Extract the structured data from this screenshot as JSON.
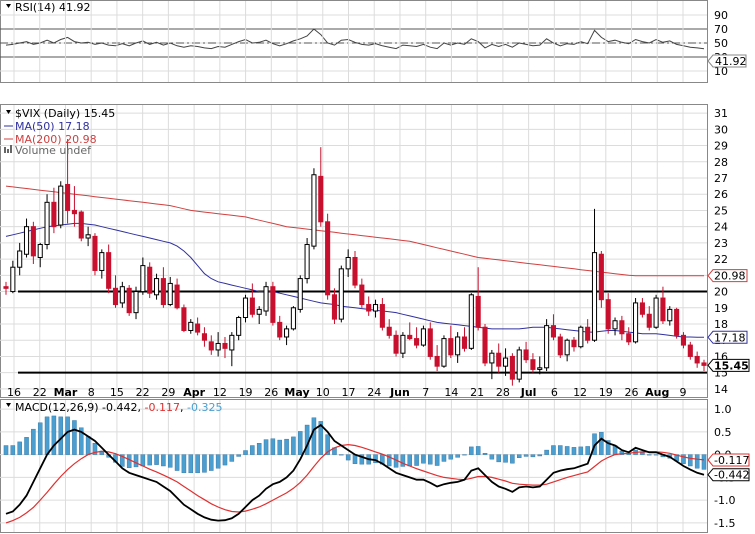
{
  "rsi": {
    "label": "RSI(14) 41.92",
    "value_tag": "41.92",
    "ticks": [
      90,
      70,
      50,
      30,
      10
    ],
    "levels": [
      70,
      50,
      30
    ]
  },
  "price": {
    "title": "$VIX (Daily) 15.45",
    "ma50_label": "MA(50) 17.18",
    "ma200_label": "MA(200) 20.98",
    "volume_label": "Volume undef",
    "last_tag": "15.45",
    "ma50_tag": "17.18",
    "ma200_tag": "20.98",
    "ticks": [
      "31",
      "30",
      "29",
      "28",
      "27",
      "26",
      "25",
      "24",
      "23",
      "22",
      "21",
      "20",
      "19",
      "18",
      "17",
      "16",
      "15",
      "14"
    ],
    "support_level": 15,
    "resistance_level": 20
  },
  "dates": [
    {
      "label": "16",
      "bold": false
    },
    {
      "label": "22",
      "bold": false
    },
    {
      "label": "Mar",
      "bold": true
    },
    {
      "label": "8",
      "bold": false
    },
    {
      "label": "15",
      "bold": false
    },
    {
      "label": "22",
      "bold": false
    },
    {
      "label": "29",
      "bold": false
    },
    {
      "label": "Apr",
      "bold": true
    },
    {
      "label": "12",
      "bold": false
    },
    {
      "label": "19",
      "bold": false
    },
    {
      "label": "26",
      "bold": false
    },
    {
      "label": "May",
      "bold": true
    },
    {
      "label": "10",
      "bold": false
    },
    {
      "label": "17",
      "bold": false
    },
    {
      "label": "24",
      "bold": false
    },
    {
      "label": "Jun",
      "bold": true
    },
    {
      "label": "7",
      "bold": false
    },
    {
      "label": "14",
      "bold": false
    },
    {
      "label": "21",
      "bold": false
    },
    {
      "label": "28",
      "bold": false
    },
    {
      "label": "Jul",
      "bold": true
    },
    {
      "label": "6",
      "bold": false
    },
    {
      "label": "12",
      "bold": false
    },
    {
      "label": "19",
      "bold": false
    },
    {
      "label": "26",
      "bold": false
    },
    {
      "label": "Aug",
      "bold": true
    },
    {
      "label": "9",
      "bold": false
    }
  ],
  "macd": {
    "label_prefix": "MACD(12,26,9)",
    "value1": "-0.442",
    "value2": "-0.117",
    "value3": "-0.325",
    "tag_signal": "-0.117",
    "tag_macd": "-0.442",
    "ticks": [
      "1.0",
      "0.5",
      "0.0",
      "-0.5",
      "-1.0",
      "-1.5"
    ]
  },
  "colors": {
    "up": "#000000",
    "down": "#c8102e",
    "ma50": "#3030a0",
    "ma200": "#d04040",
    "histogram": "#4a9fd0",
    "signal": "#e03030",
    "macd": "#000000"
  },
  "chart_data": {
    "type": "candlestick",
    "ohlc_series": [
      [
        20.3,
        20.6,
        19.8,
        20.2
      ],
      [
        20.0,
        21.9,
        19.9,
        21.5
      ],
      [
        21.5,
        23.0,
        21.0,
        22.5
      ],
      [
        22.3,
        24.5,
        22.1,
        24.0
      ],
      [
        24.0,
        24.3,
        21.7,
        22.2
      ],
      [
        22.1,
        23.0,
        21.5,
        22.9
      ],
      [
        22.9,
        26.0,
        22.6,
        25.5
      ],
      [
        25.5,
        26.4,
        23.6,
        24.0
      ],
      [
        24.1,
        26.8,
        23.9,
        26.5
      ],
      [
        26.6,
        29.4,
        24.2,
        25.0
      ],
      [
        25.0,
        26.5,
        24.0,
        24.8
      ],
      [
        24.9,
        25.0,
        23.1,
        23.3
      ],
      [
        23.3,
        24.0,
        22.8,
        23.5
      ],
      [
        23.4,
        23.6,
        21.0,
        21.3
      ],
      [
        21.3,
        22.6,
        20.8,
        22.4
      ],
      [
        22.4,
        22.9,
        19.9,
        20.2
      ],
      [
        20.2,
        21.0,
        19.0,
        19.2
      ],
      [
        19.3,
        20.6,
        19.0,
        20.3
      ],
      [
        20.2,
        20.4,
        18.5,
        18.7
      ],
      [
        18.7,
        20.3,
        18.3,
        20.0
      ],
      [
        20.0,
        22.1,
        19.8,
        21.6
      ],
      [
        21.5,
        21.8,
        19.6,
        19.9
      ],
      [
        19.8,
        21.1,
        19.5,
        20.8
      ],
      [
        20.8,
        21.5,
        19.0,
        19.2
      ],
      [
        19.2,
        20.9,
        19.1,
        20.5
      ],
      [
        20.4,
        20.8,
        18.9,
        19.0
      ],
      [
        19.0,
        19.2,
        17.5,
        17.6
      ],
      [
        17.6,
        18.3,
        17.4,
        18.1
      ],
      [
        18.0,
        18.4,
        17.3,
        17.5
      ],
      [
        17.4,
        17.8,
        16.6,
        17.0
      ],
      [
        16.9,
        17.3,
        16.1,
        16.4
      ],
      [
        16.4,
        17.5,
        16.0,
        16.8
      ],
      [
        16.8,
        17.2,
        15.9,
        16.5
      ],
      [
        16.4,
        17.5,
        15.4,
        17.3
      ],
      [
        17.3,
        18.5,
        17.0,
        18.4
      ],
      [
        18.4,
        19.8,
        18.1,
        19.6
      ],
      [
        19.6,
        20.5,
        18.4,
        18.6
      ],
      [
        18.6,
        19.1,
        18.0,
        18.9
      ],
      [
        18.8,
        20.6,
        18.5,
        20.3
      ],
      [
        20.3,
        20.6,
        17.9,
        18.1
      ],
      [
        18.1,
        18.5,
        17.0,
        17.2
      ],
      [
        17.2,
        17.9,
        16.7,
        17.7
      ],
      [
        17.7,
        19.1,
        17.6,
        19.0
      ],
      [
        18.9,
        21.0,
        18.7,
        20.8
      ],
      [
        20.8,
        23.3,
        20.5,
        22.9
      ],
      [
        22.8,
        27.6,
        22.6,
        27.2
      ],
      [
        27.1,
        28.9,
        24.0,
        24.3
      ],
      [
        24.3,
        24.8,
        19.5,
        19.8
      ],
      [
        19.8,
        20.2,
        18.0,
        18.3
      ],
      [
        18.3,
        21.6,
        18.1,
        21.4
      ],
      [
        21.4,
        22.6,
        20.9,
        22.1
      ],
      [
        22.1,
        22.5,
        20.2,
        20.4
      ],
      [
        20.4,
        20.8,
        19.0,
        19.2
      ],
      [
        19.2,
        19.7,
        18.5,
        18.8
      ],
      [
        18.8,
        19.5,
        18.4,
        19.2
      ],
      [
        19.2,
        19.6,
        17.6,
        17.8
      ],
      [
        17.8,
        18.3,
        17.1,
        17.3
      ],
      [
        17.3,
        17.6,
        16.0,
        16.2
      ],
      [
        16.2,
        17.5,
        15.9,
        17.3
      ],
      [
        17.3,
        18.1,
        17.0,
        17.1
      ],
      [
        17.1,
        17.8,
        16.5,
        16.7
      ],
      [
        16.7,
        17.9,
        16.6,
        17.7
      ],
      [
        17.7,
        18.1,
        15.8,
        16.0
      ],
      [
        16.0,
        16.7,
        15.1,
        15.4
      ],
      [
        15.4,
        17.3,
        15.3,
        17.1
      ],
      [
        17.1,
        17.9,
        15.9,
        16.1
      ],
      [
        16.1,
        17.5,
        15.6,
        17.2
      ],
      [
        17.2,
        17.8,
        16.3,
        16.5
      ],
      [
        16.5,
        19.9,
        16.4,
        19.8
      ],
      [
        19.7,
        21.5,
        17.6,
        17.8
      ],
      [
        17.8,
        18.0,
        15.4,
        15.6
      ],
      [
        15.6,
        16.4,
        14.6,
        16.2
      ],
      [
        16.2,
        16.8,
        15.0,
        15.4
      ],
      [
        15.4,
        16.5,
        14.8,
        15.9
      ],
      [
        16.0,
        16.2,
        14.2,
        14.6
      ],
      [
        14.6,
        16.6,
        14.4,
        16.4
      ],
      [
        16.4,
        16.9,
        15.6,
        15.8
      ],
      [
        15.8,
        16.2,
        15.0,
        15.2
      ],
      [
        15.2,
        16.0,
        14.9,
        15.3
      ],
      [
        15.3,
        18.3,
        15.1,
        17.9
      ],
      [
        17.9,
        18.6,
        17.0,
        17.2
      ],
      [
        17.2,
        17.4,
        15.9,
        16.1
      ],
      [
        16.1,
        17.1,
        15.7,
        17.0
      ],
      [
        17.0,
        17.2,
        16.3,
        16.6
      ],
      [
        16.6,
        17.9,
        16.5,
        17.8
      ],
      [
        17.8,
        18.3,
        16.8,
        17.0
      ],
      [
        17.0,
        25.1,
        16.9,
        22.4
      ],
      [
        22.3,
        22.5,
        19.0,
        19.5
      ],
      [
        19.5,
        19.9,
        17.4,
        17.7
      ],
      [
        17.7,
        18.4,
        17.3,
        18.2
      ],
      [
        18.2,
        18.5,
        17.0,
        17.4
      ],
      [
        17.4,
        17.8,
        16.7,
        16.9
      ],
      [
        16.9,
        19.6,
        16.8,
        19.3
      ],
      [
        19.3,
        19.6,
        18.4,
        18.6
      ],
      [
        18.6,
        19.1,
        17.6,
        17.8
      ],
      [
        17.8,
        19.8,
        17.7,
        19.6
      ],
      [
        19.6,
        20.3,
        18.0,
        18.2
      ],
      [
        18.2,
        19.1,
        17.9,
        18.9
      ],
      [
        18.9,
        19.0,
        17.1,
        17.3
      ],
      [
        17.3,
        17.5,
        16.5,
        16.7
      ],
      [
        16.7,
        16.9,
        15.8,
        16.0
      ],
      [
        16.0,
        16.3,
        15.3,
        15.6
      ],
      [
        15.6,
        15.8,
        15.1,
        15.45
      ]
    ],
    "ma50": [
      23.4,
      23.5,
      23.6,
      23.7,
      23.8,
      23.9,
      24.0,
      24.05,
      24.1,
      24.15,
      24.2,
      24.2,
      24.15,
      24.1,
      24.0,
      23.9,
      23.8,
      23.7,
      23.6,
      23.5,
      23.4,
      23.3,
      23.2,
      23.1,
      23.0,
      22.8,
      22.5,
      22.1,
      21.6,
      21.1,
      20.8,
      20.6,
      20.5,
      20.4,
      20.3,
      20.2,
      20.1,
      20.0,
      20.0,
      20.0,
      19.9,
      19.8,
      19.7,
      19.6,
      19.5,
      19.4,
      19.3,
      19.25,
      19.2,
      19.1,
      19.05,
      19.0,
      18.95,
      18.9,
      18.85,
      18.8,
      18.75,
      18.7,
      18.6,
      18.5,
      18.4,
      18.3,
      18.2,
      18.1,
      18.05,
      18.0,
      17.95,
      17.9,
      17.85,
      17.8,
      17.75,
      17.7,
      17.7,
      17.7,
      17.7,
      17.7,
      17.75,
      17.8,
      17.8,
      17.8,
      17.75,
      17.7,
      17.65,
      17.6,
      17.55,
      17.5,
      17.5,
      17.55,
      17.6,
      17.6,
      17.55,
      17.5,
      17.45,
      17.4,
      17.4,
      17.4,
      17.35,
      17.3,
      17.25,
      17.2,
      17.2,
      17.18,
      17.18
    ],
    "ma200": [
      26.5,
      26.45,
      26.4,
      26.35,
      26.3,
      26.25,
      26.2,
      26.15,
      26.1,
      26.05,
      26.0,
      25.95,
      25.9,
      25.85,
      25.8,
      25.75,
      25.7,
      25.65,
      25.6,
      25.55,
      25.5,
      25.45,
      25.4,
      25.35,
      25.3,
      25.2,
      25.1,
      25.0,
      24.95,
      24.9,
      24.85,
      24.8,
      24.75,
      24.7,
      24.65,
      24.6,
      24.5,
      24.4,
      24.3,
      24.2,
      24.1,
      24.0,
      23.95,
      23.9,
      23.85,
      23.8,
      23.75,
      23.7,
      23.65,
      23.6,
      23.55,
      23.5,
      23.45,
      23.4,
      23.35,
      23.3,
      23.25,
      23.2,
      23.15,
      23.1,
      23.0,
      22.9,
      22.8,
      22.7,
      22.6,
      22.5,
      22.4,
      22.3,
      22.2,
      22.1,
      22.05,
      22.0,
      21.95,
      21.9,
      21.85,
      21.8,
      21.75,
      21.7,
      21.65,
      21.6,
      21.55,
      21.5,
      21.45,
      21.4,
      21.35,
      21.3,
      21.25,
      21.2,
      21.15,
      21.1,
      21.05,
      21.0,
      20.98,
      20.98,
      20.98,
      20.98,
      20.98,
      20.98,
      20.98,
      20.98,
      20.98,
      20.98,
      20.98
    ],
    "rsi": [
      47,
      48,
      50,
      52,
      48,
      50,
      54,
      50,
      55,
      58,
      52,
      50,
      51,
      48,
      50,
      47,
      46,
      49,
      46,
      50,
      53,
      48,
      51,
      47,
      50,
      46,
      44,
      46,
      45,
      43,
      42,
      45,
      44,
      48,
      52,
      55,
      50,
      51,
      54,
      49,
      46,
      49,
      53,
      56,
      60,
      70,
      62,
      50,
      47,
      54,
      55,
      51,
      48,
      47,
      49,
      46,
      44,
      42,
      47,
      46,
      45,
      48,
      44,
      42,
      50,
      47,
      50,
      48,
      56,
      52,
      43,
      48,
      45,
      48,
      44,
      50,
      48,
      46,
      47,
      56,
      50,
      46,
      49,
      48,
      52,
      49,
      68,
      58,
      52,
      54,
      51,
      49,
      55,
      52,
      50,
      55,
      51,
      53,
      48,
      46,
      44,
      43,
      41.92
    ],
    "macd": [
      -1.3,
      -1.25,
      -1.1,
      -0.9,
      -0.6,
      -0.3,
      0.0,
      0.2,
      0.35,
      0.5,
      0.55,
      0.5,
      0.4,
      0.3,
      0.15,
      0.0,
      -0.15,
      -0.3,
      -0.4,
      -0.45,
      -0.5,
      -0.55,
      -0.6,
      -0.7,
      -0.8,
      -0.95,
      -1.1,
      -1.2,
      -1.3,
      -1.38,
      -1.43,
      -1.45,
      -1.44,
      -1.4,
      -1.3,
      -1.15,
      -1.0,
      -0.9,
      -0.75,
      -0.65,
      -0.6,
      -0.5,
      -0.35,
      -0.1,
      0.2,
      0.55,
      0.65,
      0.5,
      0.3,
      0.2,
      0.1,
      0.0,
      -0.05,
      -0.1,
      -0.12,
      -0.2,
      -0.3,
      -0.4,
      -0.45,
      -0.5,
      -0.55,
      -0.55,
      -0.62,
      -0.7,
      -0.65,
      -0.62,
      -0.6,
      -0.55,
      -0.35,
      -0.3,
      -0.45,
      -0.6,
      -0.7,
      -0.75,
      -0.82,
      -0.72,
      -0.7,
      -0.72,
      -0.7,
      -0.55,
      -0.4,
      -0.35,
      -0.32,
      -0.3,
      -0.25,
      -0.2,
      0.2,
      0.35,
      0.25,
      0.2,
      0.1,
      0.05,
      0.15,
      0.1,
      0.05,
      0.05,
      0.0,
      -0.05,
      -0.15,
      -0.25,
      -0.33,
      -0.4,
      -0.442
    ],
    "signal": [
      -1.5,
      -1.45,
      -1.38,
      -1.28,
      -1.16,
      -1.0,
      -0.83,
      -0.65,
      -0.48,
      -0.33,
      -0.2,
      -0.09,
      -0.0,
      0.05,
      0.07,
      0.06,
      0.02,
      -0.04,
      -0.11,
      -0.18,
      -0.25,
      -0.32,
      -0.38,
      -0.45,
      -0.52,
      -0.6,
      -0.7,
      -0.8,
      -0.9,
      -0.99,
      -1.08,
      -1.15,
      -1.21,
      -1.25,
      -1.26,
      -1.24,
      -1.2,
      -1.15,
      -1.08,
      -1.0,
      -0.92,
      -0.84,
      -0.74,
      -0.61,
      -0.45,
      -0.26,
      -0.08,
      0.06,
      0.15,
      0.2,
      0.22,
      0.2,
      0.16,
      0.11,
      0.06,
      0.01,
      -0.05,
      -0.12,
      -0.19,
      -0.25,
      -0.31,
      -0.36,
      -0.41,
      -0.46,
      -0.5,
      -0.52,
      -0.54,
      -0.55,
      -0.52,
      -0.48,
      -0.48,
      -0.5,
      -0.54,
      -0.58,
      -0.63,
      -0.65,
      -0.66,
      -0.67,
      -0.67,
      -0.65,
      -0.6,
      -0.55,
      -0.5,
      -0.46,
      -0.42,
      -0.38,
      -0.26,
      -0.14,
      -0.06,
      0.0,
      0.02,
      0.03,
      0.05,
      0.06,
      0.06,
      0.06,
      0.05,
      0.03,
      -0.01,
      -0.05,
      -0.08,
      -0.1,
      -0.117
    ],
    "ylim_price": [
      13.5,
      31.5
    ],
    "ylim_macd": [
      -1.7,
      1.2
    ]
  }
}
